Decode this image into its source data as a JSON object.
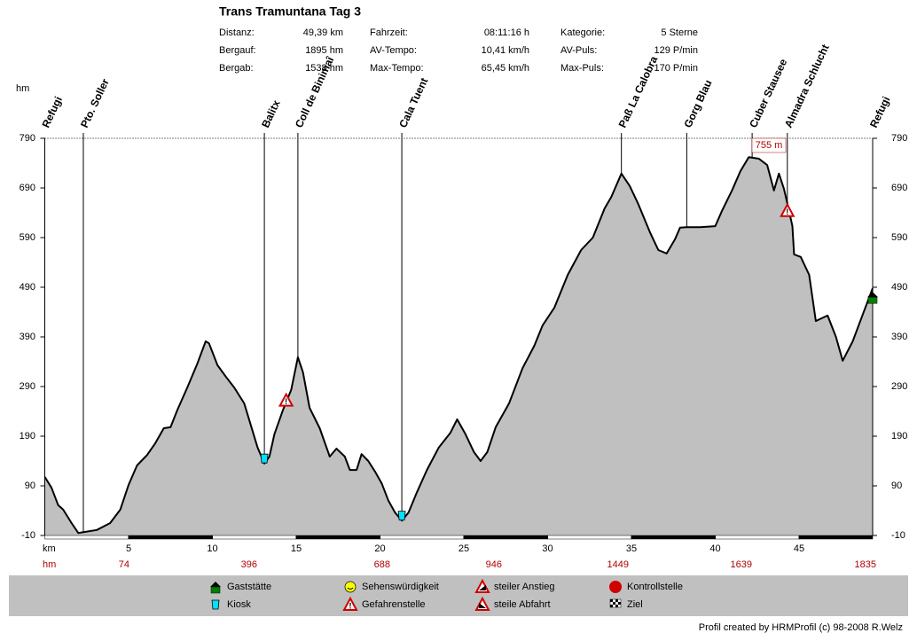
{
  "chart_data": {
    "type": "area",
    "title": "Trans Tramuntana Tag 3",
    "stats": [
      {
        "label": "Distanz:",
        "value": "49,39 km"
      },
      {
        "label": "Bergauf:",
        "value": "1895 hm"
      },
      {
        "label": "Bergab:",
        "value": "1538 hm"
      },
      {
        "label": "Fahrzeit:",
        "value": "08:11:16 h"
      },
      {
        "label": "AV-Tempo:",
        "value": "10,41 km/h"
      },
      {
        "label": "Max-Tempo:",
        "value": "65,45 km/h"
      },
      {
        "label": "Kategorie:",
        "value": "5 Sterne"
      },
      {
        "label": "AV-Puls:",
        "value": "129 P/min"
      },
      {
        "label": "Max-Puls:",
        "value": "170 P/min"
      }
    ],
    "y_label": "hm",
    "x_label": "km",
    "ascent_row_label": "hm",
    "ascent_labels": [
      "74",
      "396",
      "688",
      "946",
      "1449",
      "1639",
      "1835"
    ],
    "color": "#c0c0c0",
    "line_color": "#000000",
    "x": [
      0,
      0.4,
      0.8,
      1.1,
      1.6,
      2.0,
      2.35,
      3.1,
      3.9,
      4.5,
      5.0,
      5.5,
      6.1,
      6.6,
      7.1,
      7.5,
      7.9,
      8.5,
      9.1,
      9.6,
      9.8,
      10.3,
      10.8,
      11.3,
      11.9,
      12.3,
      12.7,
      13.1,
      13.4,
      13.7,
      14.2,
      14.7,
      15.1,
      15.4,
      15.8,
      16.4,
      17.0,
      17.4,
      17.9,
      18.2,
      18.6,
      18.9,
      19.3,
      19.7,
      20.1,
      20.5,
      20.9,
      21.3,
      21.7,
      22.2,
      22.8,
      23.5,
      24.2,
      24.6,
      25.1,
      25.6,
      26.0,
      26.4,
      26.9,
      27.7,
      28.5,
      29.2,
      29.7,
      30.4,
      31.2,
      32.0,
      32.7,
      33.4,
      33.8,
      34.4,
      34.9,
      35.4,
      36.1,
      36.6,
      37.1,
      37.6,
      37.9,
      38.3,
      39.1,
      40.0,
      40.4,
      41.0,
      41.5,
      42.0,
      42.6,
      43.1,
      43.5,
      43.8,
      44.1,
      44.4,
      44.6,
      44.7,
      45.1,
      45.6,
      46.0,
      46.7,
      47.2,
      47.6,
      48.2,
      48.8,
      49.39
    ],
    "values": [
      108,
      86,
      51,
      42,
      15,
      -5,
      -3,
      1,
      15,
      42,
      92,
      131,
      152,
      176,
      206,
      208,
      242,
      288,
      336,
      381,
      377,
      333,
      310,
      288,
      256,
      211,
      167,
      135,
      149,
      194,
      242,
      283,
      349,
      319,
      247,
      206,
      149,
      165,
      149,
      122,
      122,
      154,
      140,
      119,
      95,
      60,
      36,
      20,
      36,
      77,
      122,
      167,
      197,
      224,
      194,
      158,
      140,
      158,
      208,
      256,
      327,
      372,
      413,
      449,
      515,
      565,
      590,
      649,
      672,
      719,
      694,
      658,
      601,
      565,
      558,
      587,
      610,
      611,
      611,
      613,
      644,
      685,
      724,
      752,
      749,
      736,
      685,
      719,
      688,
      644,
      613,
      556,
      551,
      515,
      422,
      433,
      390,
      342,
      381,
      435,
      488
    ],
    "xlim": [
      0,
      49.39
    ],
    "ylim": [
      -10,
      790
    ],
    "xticks": [
      5,
      10,
      15,
      20,
      25,
      30,
      35,
      40,
      45
    ],
    "yticks": [
      -10,
      90,
      190,
      290,
      390,
      490,
      590,
      690,
      790
    ],
    "waypoints": [
      {
        "name": "Refugi",
        "x": 0
      },
      {
        "name": "Pto. Soller",
        "x": 2.3
      },
      {
        "name": "Balitx",
        "x": 13.1
      },
      {
        "name": "Coll de Binimaî",
        "x": 15.1
      },
      {
        "name": "Cala Tuent",
        "x": 21.3
      },
      {
        "name": "Paß La Calobra",
        "x": 34.4
      },
      {
        "name": "Gorg Blau",
        "x": 38.3
      },
      {
        "name": "Cuber Stausee",
        "x": 42.2
      },
      {
        "name": "Almadra Schlucht",
        "x": 44.3
      },
      {
        "name": "Refugi",
        "x": 49.39
      }
    ],
    "max_annotation": {
      "value": 755,
      "label": "755 m",
      "x": 43.2
    },
    "markers": [
      {
        "symbol": "Kiosk",
        "x": 13.1,
        "y": 145
      },
      {
        "symbol": "Kiosk",
        "x": 21.3,
        "y": 30
      },
      {
        "symbol": "Gefahrenstelle",
        "x": 14.4,
        "y": 262
      },
      {
        "symbol": "Gefahrenstelle",
        "x": 44.3,
        "y": 644
      },
      {
        "symbol": "Gaststätte",
        "x": 49.39,
        "y": 470
      }
    ],
    "legend": [
      "Gaststätte",
      "Kiosk",
      "Sehenswürdigkeit",
      "Gefahrenstelle",
      "steiler Anstieg",
      "steile Abfahrt",
      "Kontrollstelle",
      "Ziel"
    ],
    "footer": "Profil created by HRMProfil (c) 98-2008 R.Welz"
  }
}
